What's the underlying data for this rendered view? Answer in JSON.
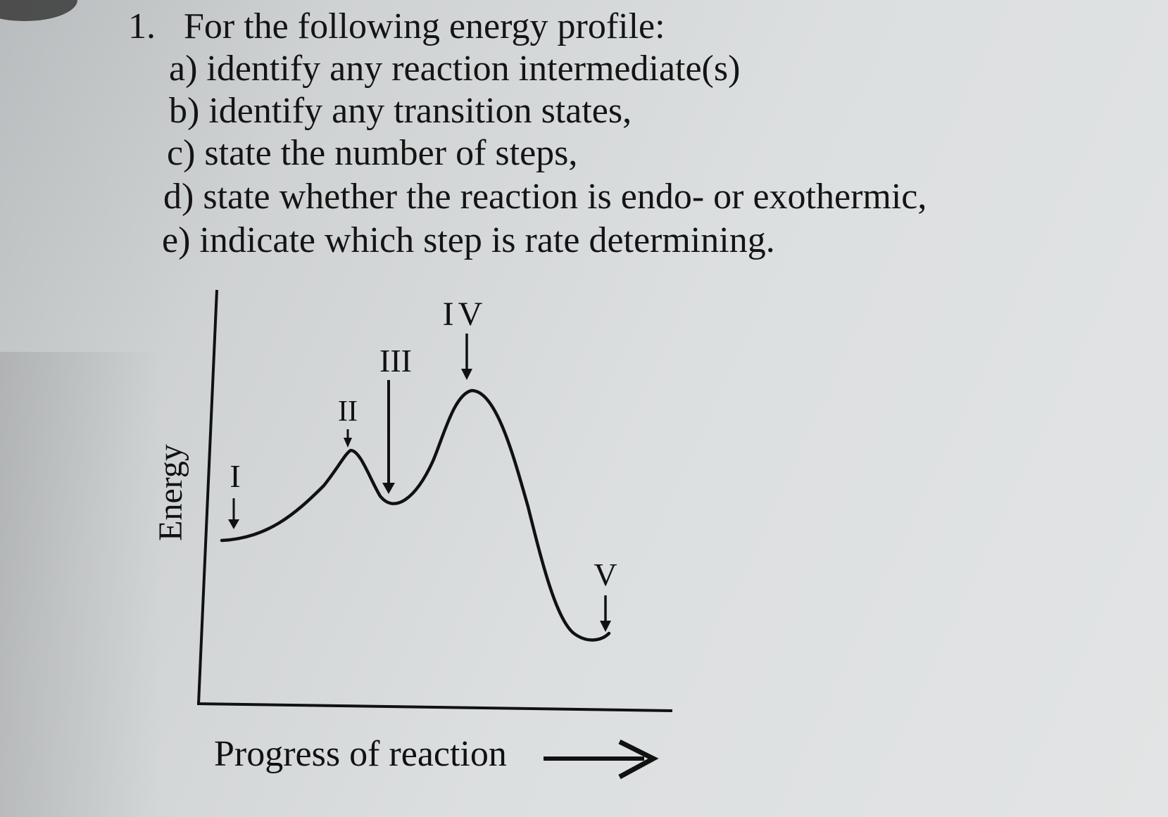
{
  "question": {
    "number": "1.",
    "prompt": "For the following energy profile:",
    "parts": [
      {
        "label": "a)",
        "text": "identify any reaction intermediate(s)"
      },
      {
        "label": "b)",
        "text": "identify any transition states,"
      },
      {
        "label": "c)",
        "text": "state the number of steps,"
      },
      {
        "label": "d)",
        "text": "state whether the reaction is endo- or exothermic,"
      },
      {
        "label": "e)",
        "text": "indicate which step is rate determining."
      }
    ]
  },
  "diagram": {
    "y_axis_label": "Energy",
    "x_axis_label": "Progress of reaction",
    "point_labels": [
      "I",
      "II",
      "III",
      "IV",
      "V"
    ]
  }
}
